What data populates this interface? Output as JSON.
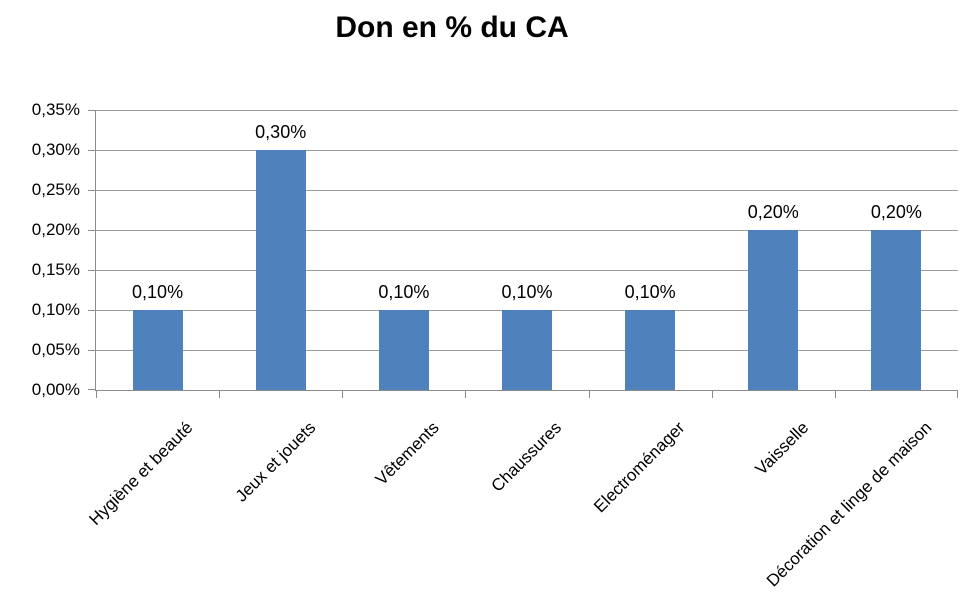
{
  "chart_data": {
    "type": "bar",
    "title": "Don en % du CA",
    "xlabel": "",
    "ylabel": "",
    "categories": [
      "Hygiène et beauté",
      "Jeux et jouets",
      "Vêtements",
      "Chaussures",
      "Electroménager",
      "Vaisselle",
      "Décoration et linge de maison"
    ],
    "values": [
      0.1,
      0.3,
      0.1,
      0.1,
      0.1,
      0.2,
      0.2
    ],
    "data_labels": [
      "0,10%",
      "0,30%",
      "0,10%",
      "0,10%",
      "0,10%",
      "0,20%",
      "0,20%"
    ],
    "y_tick_values": [
      0.0,
      0.05,
      0.1,
      0.15,
      0.2,
      0.25,
      0.3,
      0.35
    ],
    "y_tick_labels": [
      "0,00%",
      "0,05%",
      "0,10%",
      "0,15%",
      "0,20%",
      "0,25%",
      "0,30%",
      "0,35%"
    ],
    "ylim": [
      0,
      0.35
    ],
    "grid": true,
    "legend": "none",
    "colors": {
      "bar_fill": "#4F81BD",
      "gridline": "#9C9C9C",
      "axis": "#8C8C8C",
      "text": "#000000",
      "background": "#FFFFFF"
    }
  }
}
